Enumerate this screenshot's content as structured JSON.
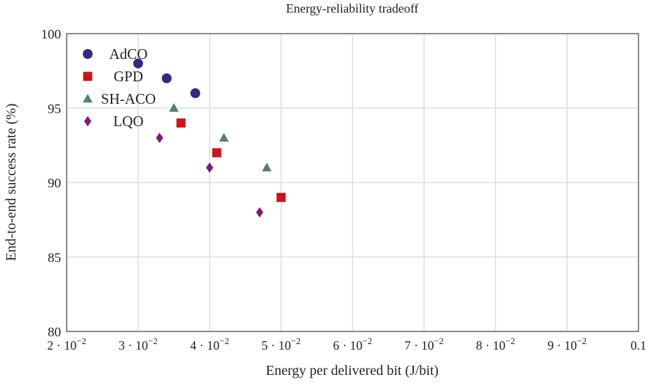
{
  "chart_data": {
    "type": "scatter",
    "title": "Energy-reliability tradeoff",
    "xlabel": "Energy per delivered bit (J/bit)",
    "ylabel": "End-to-end success rate (%)",
    "xlim": [
      0.02,
      0.1
    ],
    "ylim": [
      80,
      100
    ],
    "grid": true,
    "legend_position": "top-left",
    "xticks": [
      {
        "value": 0.02,
        "mant": "2 · 10",
        "exp": "−2"
      },
      {
        "value": 0.03,
        "mant": "3 · 10",
        "exp": "−2"
      },
      {
        "value": 0.04,
        "mant": "4 · 10",
        "exp": "−2"
      },
      {
        "value": 0.05,
        "mant": "5 · 10",
        "exp": "−2"
      },
      {
        "value": 0.06,
        "mant": "6 · 10",
        "exp": "−2"
      },
      {
        "value": 0.07,
        "mant": "7 · 10",
        "exp": "−2"
      },
      {
        "value": 0.08,
        "mant": "8 · 10",
        "exp": "−2"
      },
      {
        "value": 0.09,
        "mant": "9 · 10",
        "exp": "−2"
      },
      {
        "value": 0.1,
        "mant": "0.1",
        "exp": ""
      }
    ],
    "yticks": [
      {
        "value": 80,
        "label": "80"
      },
      {
        "value": 85,
        "label": "85"
      },
      {
        "value": 90,
        "label": "90"
      },
      {
        "value": 95,
        "label": "95"
      },
      {
        "value": 100,
        "label": "100"
      }
    ],
    "series": [
      {
        "name": "AdCO",
        "marker": "circle",
        "color": "#2e2a85",
        "stroke": "#2e2a85",
        "x": [
          0.03,
          0.034,
          0.038
        ],
        "y": [
          98,
          97,
          96
        ]
      },
      {
        "name": "GPD",
        "marker": "square",
        "color": "#cc1518",
        "stroke": "#cc1518",
        "x": [
          0.036,
          0.041,
          0.05
        ],
        "y": [
          94,
          92,
          89
        ]
      },
      {
        "name": "SH-ACO",
        "marker": "triangle",
        "color": "#9c6a3c",
        "stroke": "#1f8a8a",
        "x": [
          0.035,
          0.042,
          0.048
        ],
        "y": [
          95,
          93,
          91
        ]
      },
      {
        "name": "LQO",
        "marker": "diamond",
        "color": "#7e1a7e",
        "stroke": "#7e1a7e",
        "x": [
          0.033,
          0.04,
          0.047
        ],
        "y": [
          93,
          91,
          88
        ]
      }
    ]
  }
}
